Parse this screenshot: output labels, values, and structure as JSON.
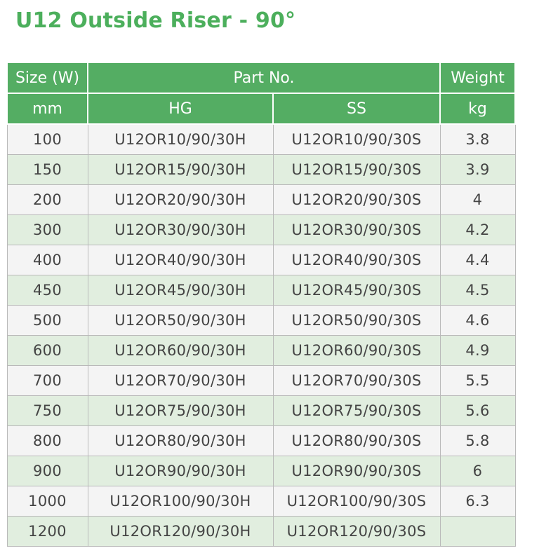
{
  "title": "U12 Outside Riser - 90°",
  "table": {
    "header1": {
      "size": "Size (W)",
      "part": "Part No.",
      "weight": "Weight"
    },
    "header2": {
      "size": "mm",
      "hg": "HG",
      "ss": "SS",
      "weight": "kg"
    },
    "rows": [
      {
        "size": "100",
        "hg": "U12OR10/90/30H",
        "ss": "U12OR10/90/30S",
        "weight": "3.8"
      },
      {
        "size": "150",
        "hg": "U12OR15/90/30H",
        "ss": "U12OR15/90/30S",
        "weight": "3.9"
      },
      {
        "size": "200",
        "hg": "U12OR20/90/30H",
        "ss": "U12OR20/90/30S",
        "weight": "4"
      },
      {
        "size": "300",
        "hg": "U12OR30/90/30H",
        "ss": "U12OR30/90/30S",
        "weight": "4.2"
      },
      {
        "size": "400",
        "hg": "U12OR40/90/30H",
        "ss": "U12OR40/90/30S",
        "weight": "4.4"
      },
      {
        "size": "450",
        "hg": "U12OR45/90/30H",
        "ss": "U12OR45/90/30S",
        "weight": "4.5"
      },
      {
        "size": "500",
        "hg": "U12OR50/90/30H",
        "ss": "U12OR50/90/30S",
        "weight": "4.6"
      },
      {
        "size": "600",
        "hg": "U12OR60/90/30H",
        "ss": "U12OR60/90/30S",
        "weight": "4.9"
      },
      {
        "size": "700",
        "hg": "U12OR70/90/30H",
        "ss": "U12OR70/90/30S",
        "weight": "5.5"
      },
      {
        "size": "750",
        "hg": "U12OR75/90/30H",
        "ss": "U12OR75/90/30S",
        "weight": "5.6"
      },
      {
        "size": "800",
        "hg": "U12OR80/90/30H",
        "ss": "U12OR80/90/30S",
        "weight": "5.8"
      },
      {
        "size": "900",
        "hg": "U12OR90/90/30H",
        "ss": "U12OR90/90/30S",
        "weight": "6"
      },
      {
        "size": "1000",
        "hg": "U12OR100/90/30H",
        "ss": "U12OR100/90/30S",
        "weight": "6.3"
      },
      {
        "size": "1200",
        "hg": "U12OR120/90/30H",
        "ss": "U12OR120/90/30S",
        "weight": ""
      }
    ]
  },
  "colors": {
    "title_green": "#4caf5c",
    "header_green": "#54ad63",
    "row_light": "#f4f4f4",
    "row_green": "#e1eedf",
    "text": "#444444"
  }
}
